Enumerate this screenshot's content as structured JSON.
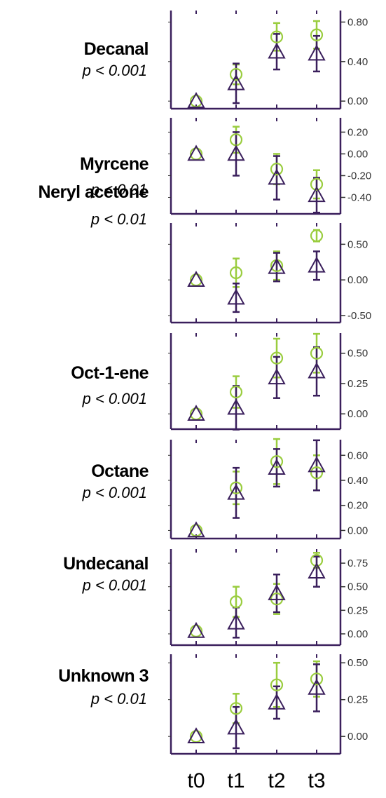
{
  "chart_data": {
    "type": "scatter",
    "x_categories": [
      "t0",
      "t1",
      "t2",
      "t3"
    ],
    "colors": {
      "circle_series": "#9acd3f",
      "triangle_series": "#3a1f5c",
      "axis": "#3a1f5c"
    },
    "marker_shapes": {
      "circle_series": "circle",
      "triangle_series": "triangle"
    },
    "panels": [
      {
        "compound": "Decanal",
        "pvalue": "p < 0.001",
        "ylim": [
          -0.02,
          0.86
        ],
        "yticks": [
          0.0,
          0.4,
          0.8
        ],
        "ytick_labels": [
          "0.00",
          "0.40",
          "0.80"
        ],
        "circle": {
          "y": [
            0.0,
            0.27,
            0.65,
            0.67
          ],
          "err": [
            0.0,
            0.1,
            0.14,
            0.14
          ]
        },
        "triangle": {
          "y": [
            0.0,
            0.18,
            0.5,
            0.48
          ],
          "err": [
            0.0,
            0.2,
            0.18,
            0.18
          ]
        }
      },
      {
        "compound": "Myrcene",
        "pvalue": "p < 0.01",
        "ylim": [
          -0.5,
          0.28
        ],
        "yticks": [
          0.2,
          0.0,
          -0.2,
          -0.4
        ],
        "ytick_labels": [
          "0.20",
          "0.00",
          "-0.20",
          "-0.40"
        ],
        "circle": {
          "y": [
            0.0,
            0.13,
            -0.14,
            -0.28
          ],
          "err": [
            0.0,
            0.12,
            0.14,
            0.13
          ]
        },
        "triangle": {
          "y": [
            0.0,
            0.0,
            -0.22,
            -0.38
          ],
          "err": [
            0.0,
            0.2,
            0.2,
            0.16
          ]
        }
      },
      {
        "compound": "Neryl acetone",
        "pvalue": "p < 0.01",
        "ylim": [
          -0.52,
          0.72
        ],
        "yticks": [
          0.5,
          0.0,
          -0.5
        ],
        "ytick_labels": [
          "0.50",
          "0.00",
          "-0.50"
        ],
        "circle": {
          "y": [
            0.0,
            0.1,
            0.2,
            0.62
          ],
          "err": [
            0.0,
            0.2,
            0.2,
            0.08
          ]
        },
        "triangle": {
          "y": [
            0.0,
            -0.25,
            0.18,
            0.2
          ],
          "err": [
            0.0,
            0.2,
            0.2,
            0.2
          ]
        }
      },
      {
        "compound": "Oct-1-ene",
        "pvalue": "p < 0.001",
        "ylim": [
          -0.08,
          0.62
        ],
        "yticks": [
          0.5,
          0.25,
          0.0
        ],
        "ytick_labels": [
          "0.50",
          "0.25",
          "0.00"
        ],
        "circle": {
          "y": [
            0.0,
            0.18,
            0.46,
            0.5
          ],
          "err": [
            0.0,
            0.13,
            0.16,
            0.16
          ]
        },
        "triangle": {
          "y": [
            0.0,
            0.05,
            0.3,
            0.35
          ],
          "err": [
            0.0,
            0.18,
            0.17,
            0.2
          ]
        }
      },
      {
        "compound": "Octane",
        "pvalue": "p < 0.001",
        "ylim": [
          -0.02,
          0.68
        ],
        "yticks": [
          0.6,
          0.4,
          0.2,
          0.0
        ],
        "ytick_labels": [
          "0.60",
          "0.40",
          "0.20",
          "0.00"
        ],
        "circle": {
          "y": [
            0.0,
            0.34,
            0.55,
            0.46
          ],
          "err": [
            0.0,
            0.13,
            0.18,
            0.14
          ]
        },
        "triangle": {
          "y": [
            0.0,
            0.3,
            0.5,
            0.52
          ],
          "err": [
            0.0,
            0.2,
            0.15,
            0.2
          ]
        }
      },
      {
        "compound": "Undecanal",
        "pvalue": "p < 0.001",
        "ylim": [
          -0.06,
          0.84
        ],
        "yticks": [
          0.75,
          0.5,
          0.25,
          0.0
        ],
        "ytick_labels": [
          "0.75",
          "0.50",
          "0.25",
          "0.00"
        ],
        "circle": {
          "y": [
            0.03,
            0.34,
            0.37,
            0.78
          ],
          "err": [
            0.0,
            0.16,
            0.16,
            0.08
          ]
        },
        "triangle": {
          "y": [
            0.03,
            0.12,
            0.43,
            0.66
          ],
          "err": [
            0.0,
            0.16,
            0.2,
            0.16
          ]
        }
      },
      {
        "compound": "Unknown 3",
        "pvalue": "p < 0.01",
        "ylim": [
          -0.08,
          0.52
        ],
        "yticks": [
          0.5,
          0.25,
          0.0
        ],
        "ytick_labels": [
          "0.50",
          "0.25",
          "0.00"
        ],
        "circle": {
          "y": [
            0.0,
            0.19,
            0.35,
            0.39
          ],
          "err": [
            0.0,
            0.1,
            0.15,
            0.12
          ]
        },
        "triangle": {
          "y": [
            0.0,
            0.06,
            0.23,
            0.33
          ],
          "err": [
            0.0,
            0.14,
            0.11,
            0.16
          ]
        }
      }
    ]
  }
}
